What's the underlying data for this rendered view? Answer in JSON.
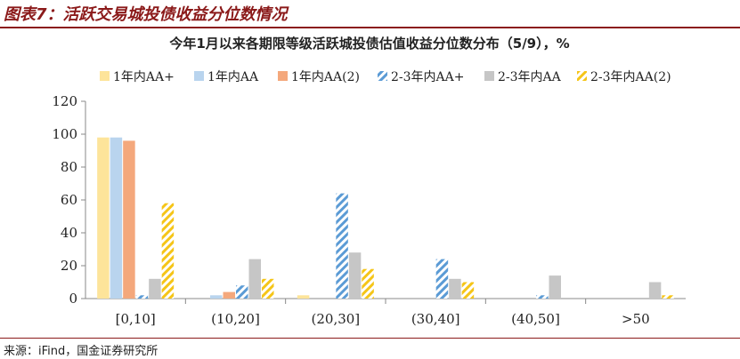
{
  "figure_title": "图表7：活跃交易城投债收益分位数情况",
  "source": "来源：iFind，国金证券研究所",
  "colors": {
    "1年内AA+": "#fde49a",
    "1年内AA": "#b9d4ee",
    "1年内AA(2)": "#f4a87c",
    "2-3年内AA+": "#5b9bd5",
    "2-3年内AA": "#c6c6c6",
    "2-3年内AA(2)": "#f5c518"
  },
  "chart_data": {
    "type": "bar",
    "title": "今年1月以来各期限等级活跃城投债估值收益分位数分布（5/9），%",
    "categories": [
      "[0,10]",
      "(10,20]",
      "(20,30]",
      "(30,40]",
      "(40,50]",
      ">50"
    ],
    "yticks": [
      "0",
      "20",
      "40",
      "60",
      "80",
      "100",
      "120"
    ],
    "ylim": [
      0,
      120
    ],
    "legend_position": "top",
    "series": [
      {
        "name": "1年内AA+",
        "pattern": "solid",
        "values": [
          98,
          0,
          2,
          0,
          0,
          0
        ]
      },
      {
        "name": "1年内AA",
        "pattern": "solid",
        "values": [
          98,
          2,
          0,
          0,
          0,
          0
        ]
      },
      {
        "name": "1年内AA(2)",
        "pattern": "solid",
        "values": [
          96,
          4,
          0,
          0,
          0,
          0
        ]
      },
      {
        "name": "2-3年内AA+",
        "pattern": "hatch",
        "values": [
          2,
          8,
          64,
          24,
          2,
          0
        ]
      },
      {
        "name": "2-3年内AA",
        "pattern": "solid",
        "values": [
          12,
          24,
          28,
          12,
          14,
          10
        ]
      },
      {
        "name": "2-3年内AA(2)",
        "pattern": "hatch",
        "values": [
          58,
          12,
          18,
          10,
          0,
          2
        ]
      }
    ]
  }
}
